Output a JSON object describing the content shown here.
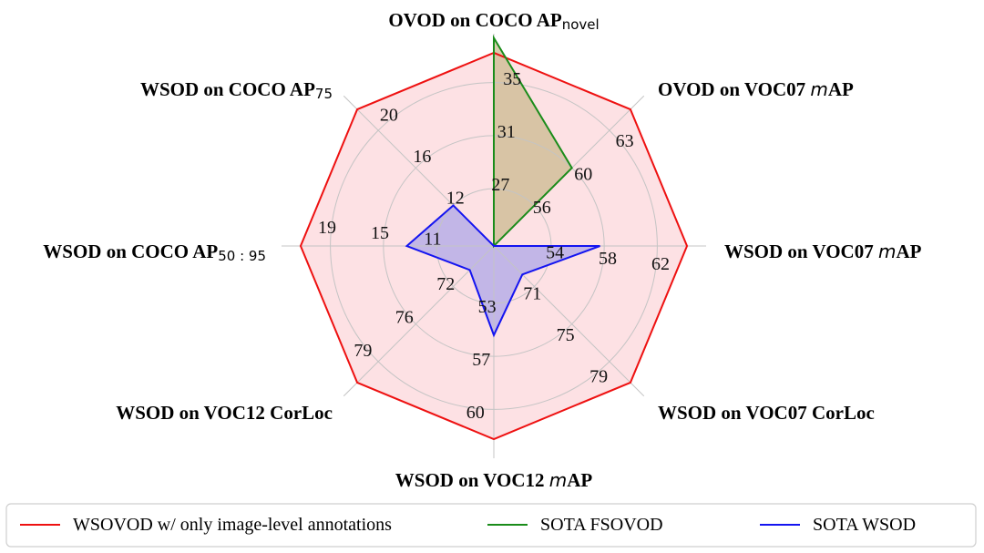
{
  "chart_data": {
    "type": "radar",
    "axes": [
      {
        "label": "OVOD on COCO AP",
        "sub": "novel",
        "ital": "",
        "suffix": "",
        "ticks": [
          "27",
          "31",
          "35"
        ]
      },
      {
        "label": "OVOD on VOC07 ",
        "sub": "",
        "ital": "m",
        "suffix": "AP",
        "ticks": [
          "56",
          "60",
          "63"
        ]
      },
      {
        "label": "WSOD on VOC07 ",
        "sub": "",
        "ital": "m",
        "suffix": "AP",
        "ticks": [
          "54",
          "58",
          "62"
        ]
      },
      {
        "label": "WSOD on VOC07 CorLoc",
        "sub": "",
        "ital": "",
        "suffix": "",
        "ticks": [
          "71",
          "75",
          "79"
        ]
      },
      {
        "label": "WSOD on VOC12 ",
        "sub": "",
        "ital": "m",
        "suffix": "AP",
        "ticks": [
          "53",
          "57",
          "60"
        ]
      },
      {
        "label": "WSOD on VOC12 CorLoc",
        "sub": "",
        "ital": "",
        "suffix": "",
        "ticks": [
          "72",
          "76",
          "79"
        ]
      },
      {
        "label": "WSOD on COCO AP",
        "sub": "50 : 95",
        "ital": "",
        "suffix": "",
        "ticks": [
          "11",
          "15",
          "19"
        ]
      },
      {
        "label": "WSOD on COCO AP",
        "sub": "75",
        "ital": "",
        "suffix": "",
        "ticks": [
          "12",
          "16",
          "20"
        ]
      }
    ],
    "rlim": [
      0,
      1
    ],
    "grid": true,
    "series": [
      {
        "name": "WSOVOD w/ only image-level annotations",
        "color": "#ee1111",
        "fill": "#fcd4d8",
        "values": [
          0.91,
          0.91,
          0.91,
          0.91,
          0.91,
          0.91,
          0.91,
          0.91
        ]
      },
      {
        "name": "SOTA FSOVOD",
        "color": "#1a8c1a",
        "fill": "#c8b88a",
        "values": [
          0.98,
          0.52,
          0.0,
          0.0,
          0.0,
          0.0,
          0.0,
          0.0
        ]
      },
      {
        "name": "SOTA WSOD",
        "color": "#1414f0",
        "fill": "#a8a4e8",
        "values": [
          0.0,
          0.0,
          0.5,
          0.19,
          0.42,
          0.16,
          0.41,
          0.27
        ]
      }
    ],
    "legend": "bottom"
  }
}
